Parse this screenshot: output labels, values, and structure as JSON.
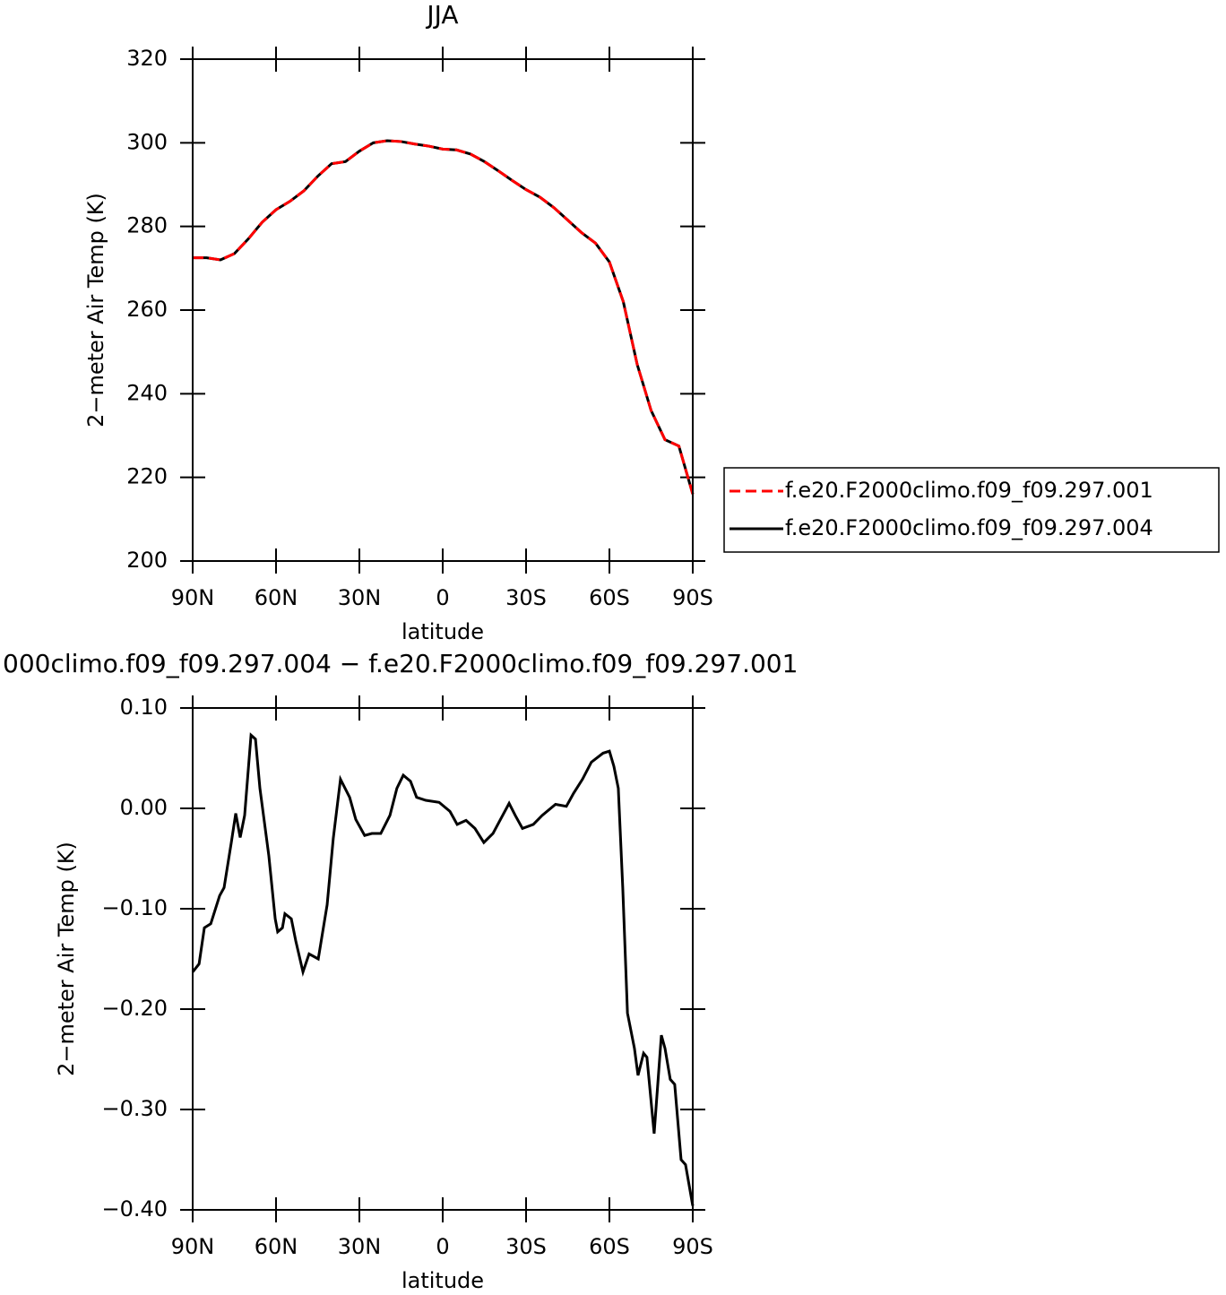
{
  "chart_data": [
    {
      "type": "line",
      "title": "JJA",
      "x_label": "latitude",
      "y_label": "2−meter Air Temp (K)",
      "x": [
        90,
        85,
        80,
        75,
        70,
        65,
        60,
        55,
        50,
        45,
        40,
        35,
        30,
        25,
        20,
        15,
        10,
        5,
        0,
        -5,
        -10,
        -15,
        -20,
        -25,
        -30,
        -35,
        -40,
        -45,
        -50,
        -55,
        -60,
        -65,
        -70,
        -75,
        -80,
        -85,
        -90
      ],
      "series": [
        {
          "name": "f.e20.F2000climo.f09_f09.297.001",
          "color": "#ff0000",
          "line_style": "dashed",
          "values": [
            272.5,
            272.5,
            272,
            273.5,
            277,
            281,
            284,
            286,
            288.5,
            292,
            295,
            295.5,
            298,
            300,
            300.5,
            300.3,
            299.7,
            299.2,
            298.5,
            298.3,
            297.3,
            295.5,
            293.3,
            291,
            288.8,
            287,
            284.5,
            281.5,
            278.5,
            276,
            271.5,
            262,
            247,
            236,
            229,
            227.5,
            216
          ]
        },
        {
          "name": "f.e20.F2000climo.f09_f09.297.004",
          "color": "#000000",
          "line_style": "solid",
          "values": [
            272.5,
            272.5,
            272,
            273.5,
            277,
            281,
            284,
            286,
            288.5,
            292,
            295,
            295.5,
            298,
            300,
            300.5,
            300.3,
            299.7,
            299.2,
            298.5,
            298.3,
            297.3,
            295.5,
            293.3,
            291,
            288.8,
            287,
            284.5,
            281.5,
            278.5,
            276,
            271.5,
            262,
            247,
            236,
            229,
            227.5,
            216
          ]
        }
      ],
      "xlim": [
        90,
        -90
      ],
      "xticks": [
        {
          "value": 90,
          "label": "90N"
        },
        {
          "value": 60,
          "label": "60N"
        },
        {
          "value": 30,
          "label": "30N"
        },
        0,
        {
          "value": -30,
          "label": "30S"
        },
        {
          "value": -60,
          "label": "60S"
        },
        {
          "value": -90,
          "label": "90S"
        }
      ],
      "ylim": [
        200,
        320
      ],
      "yticks": [
        200,
        220,
        240,
        260,
        280,
        300,
        320
      ],
      "legend": "right"
    },
    {
      "type": "line",
      "title": "000climo.f09_f09.297.004 − f.e20.F2000climo.f09_f09.297.001",
      "x_label": "latitude",
      "y_label": "2−meter Air Temp (K)",
      "x": [
        90,
        87.7,
        85.8,
        83.5,
        80.3,
        78.7,
        76.1,
        74.5,
        72.9,
        71.3,
        69.0,
        67.4,
        65.8,
        62.6,
        60.3,
        59.4,
        57.7,
        56.8,
        54.5,
        52.9,
        50.3,
        48.1,
        44.8,
        41.6,
        39.4,
        36.8,
        33.5,
        31.3,
        28.1,
        25.5,
        22.3,
        19.0,
        16.5,
        14.2,
        11.6,
        9.4,
        6.1,
        1.3,
        -2.6,
        -5.2,
        -8.4,
        -11.6,
        -14.8,
        -18.1,
        -20.6,
        -23.9,
        -26.1,
        -28.7,
        -32.6,
        -35.8,
        -40.6,
        -44.5,
        -47.1,
        -50.3,
        -53.5,
        -57.7,
        -60.0,
        -61.6,
        -63.2,
        -64.8,
        -66.5,
        -69.0,
        -70.3,
        -72.3,
        -73.5,
        -76.1,
        -78.7,
        -80.0,
        -81.9,
        -83.5,
        -85.8,
        -87.4,
        -90
      ],
      "series": [
        {
          "color": "#000000",
          "line_style": "solid",
          "values": [
            -0.163,
            -0.155,
            -0.119,
            -0.115,
            -0.087,
            -0.079,
            -0.034,
            -0.005,
            -0.029,
            -0.007,
            0.073,
            0.069,
            0.02,
            -0.047,
            -0.11,
            -0.123,
            -0.119,
            -0.105,
            -0.11,
            -0.132,
            -0.163,
            -0.145,
            -0.15,
            -0.096,
            -0.03,
            0.029,
            0.011,
            -0.011,
            -0.027,
            -0.025,
            -0.025,
            -0.007,
            0.02,
            0.033,
            0.027,
            0.011,
            0.008,
            0.006,
            -0.003,
            -0.016,
            -0.012,
            -0.02,
            -0.034,
            -0.025,
            -0.012,
            0.005,
            -0.007,
            -0.02,
            -0.016,
            -0.007,
            0.004,
            0.002,
            0.015,
            0.029,
            0.046,
            0.055,
            0.057,
            0.042,
            0.02,
            -0.079,
            -0.204,
            -0.239,
            -0.266,
            -0.244,
            -0.248,
            -0.324,
            -0.226,
            -0.239,
            -0.27,
            -0.275,
            -0.35,
            -0.355,
            -0.396
          ]
        }
      ],
      "xlim": [
        90,
        -90
      ],
      "xticks": [
        {
          "value": 90,
          "label": "90N"
        },
        {
          "value": 60,
          "label": "60N"
        },
        {
          "value": 30,
          "label": "30N"
        },
        0,
        {
          "value": -30,
          "label": "30S"
        },
        {
          "value": -60,
          "label": "60S"
        },
        {
          "value": -90,
          "label": "90S"
        }
      ],
      "ylim": [
        -0.4,
        0.1
      ],
      "yticks": [
        {
          "value": -0.4,
          "label": "−0.40"
        },
        {
          "value": -0.3,
          "label": "−0.30"
        },
        {
          "value": -0.2,
          "label": "−0.20"
        },
        {
          "value": -0.1,
          "label": "−0.10"
        },
        {
          "value": 0,
          "label": "0.00"
        },
        {
          "value": 0.1,
          "label": "0.10"
        }
      ]
    }
  ]
}
